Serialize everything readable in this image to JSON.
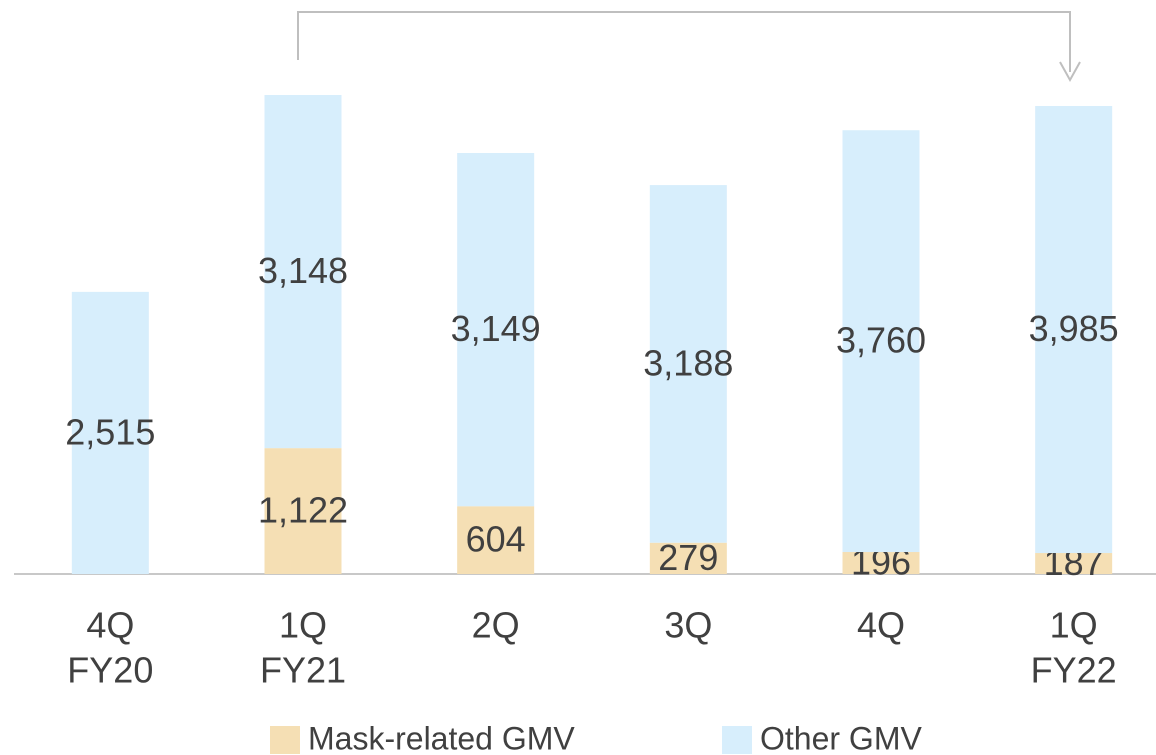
{
  "chart_data": {
    "type": "stacked-bar",
    "categories": [
      [
        "4Q",
        "FY20"
      ],
      [
        "1Q",
        "FY21"
      ],
      [
        "2Q"
      ],
      [
        "3Q"
      ],
      [
        "4Q"
      ],
      [
        "1Q",
        "FY22"
      ]
    ],
    "series": [
      {
        "name": "Mask-related GMV",
        "color": "#f5dfb4",
        "values": [
          null,
          1122,
          604,
          279,
          196,
          187
        ],
        "value_labels": [
          null,
          "1,122",
          "604",
          "279",
          "196",
          "187"
        ]
      },
      {
        "name": "Other GMV",
        "color": "#d7eefc",
        "values": [
          2515,
          3148,
          3149,
          3188,
          3760,
          3985
        ],
        "value_labels": [
          "2,515",
          "3,148",
          "3,149",
          "3,188",
          "3,760",
          "3,985"
        ]
      }
    ],
    "legend": "bottom"
  }
}
